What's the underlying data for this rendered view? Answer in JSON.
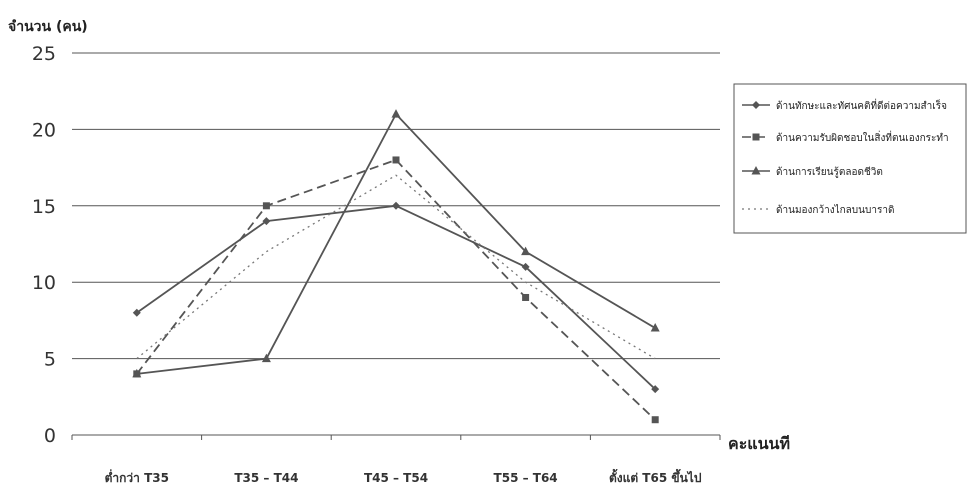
{
  "chart_data": {
    "type": "line",
    "ylabel": "จำนวน (คน)",
    "xlabel": "คะแนนที",
    "categories": [
      "ต่ำกว่า T35",
      "T35 – T44",
      "T45 – T54",
      "T55 – T64",
      "ตั้งแต่ T65 ขึ้นไป"
    ],
    "ylim": [
      0,
      25
    ],
    "yticks": [
      0,
      5,
      10,
      15,
      20,
      25
    ],
    "grid": true,
    "legend_position": "right",
    "series": [
      {
        "name": "ด้านทักษะและทัศนคติที่ดีต่อความสำเร็จ",
        "values": [
          8,
          14,
          15,
          11,
          3
        ],
        "marker": "diamond",
        "dash": "solid",
        "color": "#555555"
      },
      {
        "name": "ด้านความรับผิดชอบในสิ่งที่ตนเองกระทำ",
        "values": [
          4,
          15,
          18,
          9,
          1
        ],
        "marker": "square",
        "dash": "dashed",
        "color": "#555555"
      },
      {
        "name": "ด้านการเรียนรู้ตลอดชีวิต",
        "values": [
          4,
          5,
          21,
          12,
          7
        ],
        "marker": "triangle",
        "dash": "solid",
        "color": "#555555"
      },
      {
        "name": "ด้านมองกว้างไกลบนบาราดิ",
        "values": [
          5,
          12,
          17,
          10,
          5
        ],
        "marker": "none",
        "dash": "dotted",
        "color": "#777777"
      }
    ]
  }
}
